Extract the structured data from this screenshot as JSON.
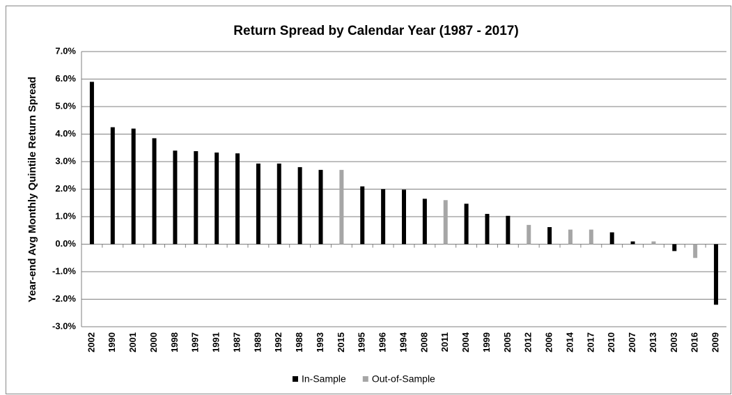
{
  "chart_data": {
    "type": "bar",
    "title": "Return Spread by Calendar Year (1987 - 2017)",
    "y_label": "Year-end Avg Monthly Quintile Return Spread",
    "categories": [
      "2002",
      "1990",
      "2001",
      "2000",
      "1998",
      "1997",
      "1991",
      "1987",
      "1989",
      "1992",
      "1988",
      "1993",
      "2015",
      "1995",
      "1996",
      "1994",
      "2008",
      "2011",
      "2004",
      "1999",
      "2005",
      "2012",
      "2006",
      "2014",
      "2017",
      "2010",
      "2007",
      "2013",
      "2003",
      "2016",
      "2009"
    ],
    "series": [
      {
        "name": "In-Sample",
        "color": "#000000",
        "values": [
          5.9,
          4.25,
          4.2,
          3.85,
          3.4,
          3.38,
          3.33,
          3.3,
          2.93,
          2.93,
          2.8,
          2.7,
          null,
          2.1,
          2.0,
          1.98,
          1.65,
          null,
          1.47,
          1.1,
          1.03,
          null,
          0.62,
          null,
          null,
          0.43,
          0.1,
          null,
          -0.25,
          null,
          -2.2
        ]
      },
      {
        "name": "Out-of-Sample",
        "color": "#a6a6a6",
        "values": [
          null,
          null,
          null,
          null,
          null,
          null,
          null,
          null,
          null,
          null,
          null,
          null,
          2.7,
          null,
          null,
          null,
          null,
          1.6,
          null,
          null,
          null,
          0.7,
          null,
          0.53,
          0.53,
          null,
          null,
          0.1,
          null,
          -0.5,
          null
        ]
      }
    ],
    "ylim": [
      -3,
      7
    ],
    "yticks": [
      {
        "value": -3,
        "label": "-3.0%"
      },
      {
        "value": -2,
        "label": "-2.0%"
      },
      {
        "value": -1,
        "label": "-1.0%"
      },
      {
        "value": 0,
        "label": "0.0%"
      },
      {
        "value": 1,
        "label": "1.0%"
      },
      {
        "value": 2,
        "label": "2.0%"
      },
      {
        "value": 3,
        "label": "3.0%"
      },
      {
        "value": 4,
        "label": "4.0%"
      },
      {
        "value": 5,
        "label": "5.0%"
      },
      {
        "value": 6,
        "label": "6.0%"
      },
      {
        "value": 7,
        "label": "7.0%"
      }
    ],
    "grid": true
  }
}
